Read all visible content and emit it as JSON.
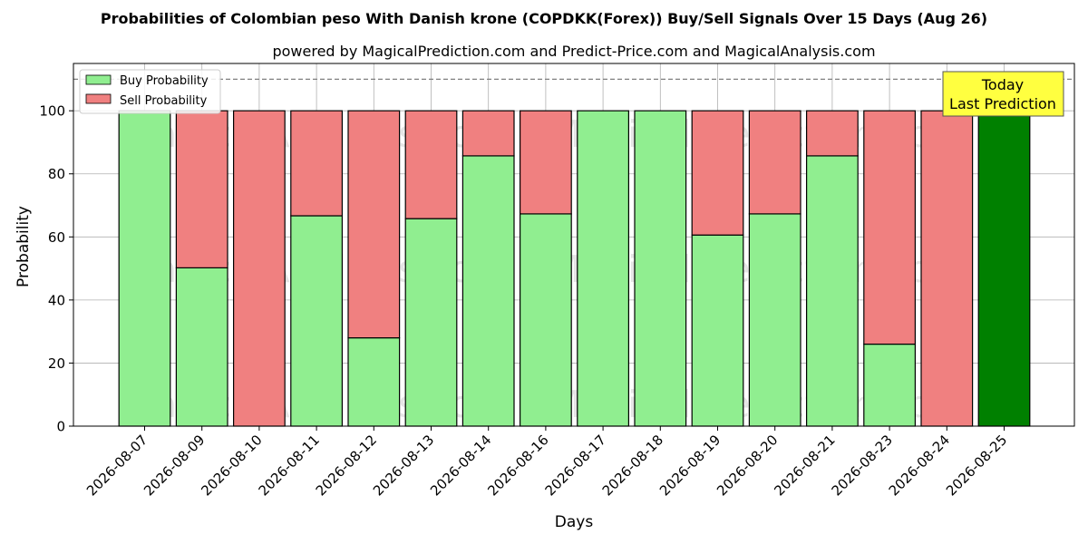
{
  "chart_data": {
    "type": "bar",
    "stacked": true,
    "title": "Probabilities of Colombian peso With Danish krone (COPDKK(Forex)) Buy/Sell Signals Over 15 Days (Aug 26)",
    "subtitle": "powered by MagicalPrediction.com and Predict-Price.com and MagicalAnalysis.com",
    "xlabel": "Days",
    "ylabel": "Probability",
    "ylim": [
      0,
      115
    ],
    "yticks": [
      0,
      20,
      40,
      60,
      80,
      100
    ],
    "reference_line": 110,
    "grid": true,
    "legend_position": "top-left",
    "categories": [
      "2026-08-07",
      "2026-08-09",
      "2026-08-10",
      "2026-08-11",
      "2026-08-12",
      "2026-08-13",
      "2026-08-14",
      "2026-08-16",
      "2026-08-17",
      "2026-08-18",
      "2026-08-19",
      "2026-08-20",
      "2026-08-21",
      "2026-08-23",
      "2026-08-24",
      "2026-08-25"
    ],
    "series": [
      {
        "name": "Buy Probability",
        "color": "#90ee90",
        "values": [
          100,
          50.2,
          0,
          66.7,
          28,
          65.8,
          85.7,
          67.3,
          100,
          100,
          60.6,
          67.3,
          85.7,
          26,
          0,
          100
        ]
      },
      {
        "name": "Sell Probability",
        "color": "#f08080",
        "values": [
          0,
          49.8,
          100,
          33.3,
          72,
          34.2,
          14.3,
          32.7,
          0,
          0,
          39.4,
          32.7,
          14.3,
          74,
          100,
          0
        ]
      }
    ],
    "highlight": {
      "index": 15,
      "color": "#008000",
      "label_lines": [
        "Today",
        "Last Prediction"
      ]
    },
    "watermarks": [
      "MagicalAnalysis.com",
      "MagicalPrediction.com"
    ]
  }
}
